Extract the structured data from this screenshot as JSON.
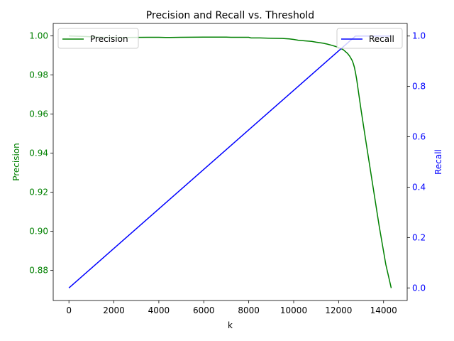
{
  "chart_data": {
    "type": "line",
    "title": "Precision and Recall vs. Threshold",
    "xlabel": "k",
    "xlim": [
      -700,
      15050
    ],
    "x_ticks": [
      0,
      2000,
      4000,
      6000,
      8000,
      10000,
      12000,
      14000
    ],
    "x_tick_labels": [
      "0",
      "2000",
      "4000",
      "6000",
      "8000",
      "10000",
      "12000",
      "14000"
    ],
    "left_axis": {
      "label": "Precision",
      "color": "#008000",
      "ylim": [
        0.8646,
        1.0064
      ],
      "ticks": [
        0.88,
        0.9,
        0.92,
        0.94,
        0.96,
        0.98,
        1.0
      ],
      "tick_labels": [
        "0.88",
        "0.90",
        "0.92",
        "0.94",
        "0.96",
        "0.98",
        "1.00"
      ]
    },
    "right_axis": {
      "label": "Recall",
      "color": "#0000ff",
      "ylim": [
        -0.05,
        1.05
      ],
      "ticks": [
        0.0,
        0.2,
        0.4,
        0.6,
        0.8,
        1.0
      ],
      "tick_labels": [
        "0.0",
        "0.2",
        "0.4",
        "0.6",
        "0.8",
        "1.0"
      ]
    },
    "series": [
      {
        "name": "Precision",
        "axis": "left",
        "color": "#008000",
        "x": [
          0,
          500,
          1500,
          2500,
          3500,
          4000,
          4300,
          4500,
          5000,
          6000,
          7000,
          7200,
          7500,
          8000,
          8100,
          8500,
          9000,
          9500,
          9800,
          10000,
          10200,
          10500,
          10800,
          11000,
          11300,
          11500,
          11700,
          11900,
          12000,
          12100,
          12200,
          12300,
          12400,
          12500,
          12550,
          12600,
          12650,
          12700,
          12750,
          12800,
          12900,
          13000,
          13200,
          13500,
          13800,
          14100,
          14340
        ],
        "y": [
          1.0,
          0.9998,
          0.9993,
          0.9992,
          0.9993,
          0.9993,
          0.9992,
          0.9992,
          0.9993,
          0.9994,
          0.9994,
          0.9993,
          0.9993,
          0.9993,
          0.999,
          0.999,
          0.9988,
          0.9987,
          0.9985,
          0.9982,
          0.9978,
          0.9975,
          0.9972,
          0.9968,
          0.9963,
          0.9958,
          0.9952,
          0.9945,
          0.994,
          0.9935,
          0.993,
          0.992,
          0.991,
          0.9895,
          0.9885,
          0.9875,
          0.986,
          0.984,
          0.9812,
          0.978,
          0.97,
          0.962,
          0.947,
          0.925,
          0.903,
          0.883,
          0.871
        ]
      },
      {
        "name": "Recall",
        "axis": "right",
        "color": "#0000ff",
        "x": [
          0,
          12750,
          13000,
          13500,
          14340
        ],
        "y": [
          0.0,
          1.0,
          1.0,
          1.0,
          1.0
        ]
      }
    ],
    "legends": [
      {
        "entry": "Precision",
        "placement": "upper-left"
      },
      {
        "entry": "Recall",
        "placement": "upper-right"
      }
    ],
    "grid": false
  }
}
